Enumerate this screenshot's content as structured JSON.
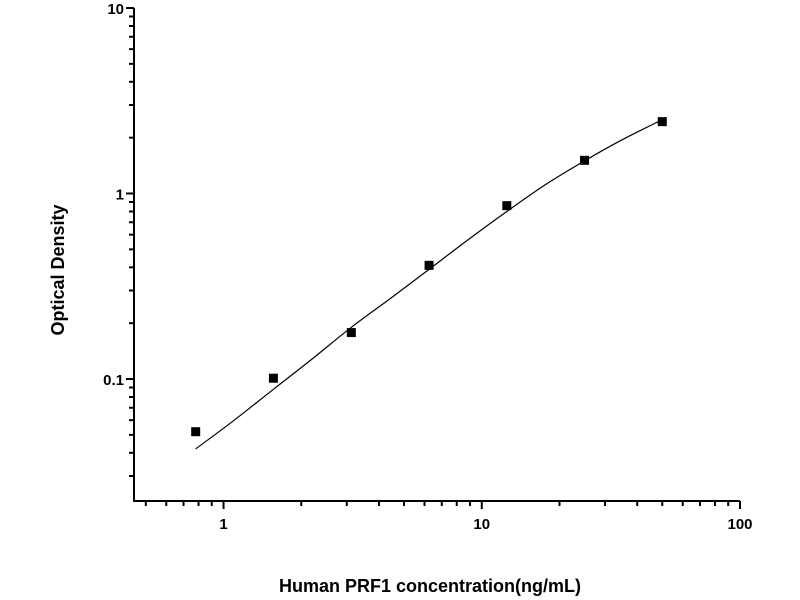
{
  "chart_data": {
    "type": "scatter",
    "title": "",
    "xlabel": "Human PRF1 concentration(ng/mL)",
    "ylabel": "Optical Density",
    "x_scale": "log",
    "y_scale": "log",
    "xlim": [
      0.45,
      100
    ],
    "ylim": [
      0.022,
      10
    ],
    "x_ticks": [
      {
        "v": 1,
        "label": "1"
      },
      {
        "v": 10,
        "label": "10"
      },
      {
        "v": 100,
        "label": "100"
      }
    ],
    "y_ticks": [
      {
        "v": 0.1,
        "label": "0.1"
      },
      {
        "v": 1,
        "label": "1"
      },
      {
        "v": 10,
        "label": "10"
      }
    ],
    "grid": false,
    "points": {
      "x": [
        0.78,
        1.56,
        3.125,
        6.25,
        12.5,
        25,
        50
      ],
      "y": [
        0.052,
        0.101,
        0.178,
        0.41,
        0.86,
        1.51,
        2.44
      ]
    },
    "fit_curve": {
      "x": [
        0.78,
        1.1,
        1.56,
        2.2,
        3.125,
        4.4,
        6.25,
        8.8,
        12.5,
        17.7,
        25,
        35,
        50
      ],
      "y": [
        0.042,
        0.06,
        0.088,
        0.128,
        0.19,
        0.27,
        0.39,
        0.56,
        0.8,
        1.12,
        1.5,
        1.95,
        2.5
      ]
    },
    "colors": {
      "marker": "#000000",
      "line": "#000000"
    }
  }
}
